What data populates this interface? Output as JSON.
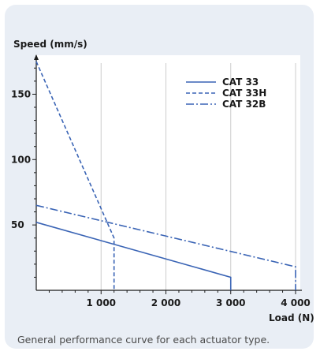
{
  "chart_data": {
    "type": "line",
    "ylabel": "Speed (mm/s)",
    "xlabel": "Load (N)",
    "xlim": [
      0,
      4000
    ],
    "ylim": [
      0,
      175
    ],
    "xticks": [
      1000,
      2000,
      3000,
      4000
    ],
    "xtick_labels": [
      "1 000",
      "2 000",
      "3 000",
      "4 000"
    ],
    "yticks": [
      50,
      100,
      150
    ],
    "ytick_labels": [
      "50",
      "100",
      "150"
    ],
    "grid": true,
    "legend_position": "top-right",
    "series": [
      {
        "name": "CAT 33",
        "dash": "solid",
        "points": [
          [
            0,
            52
          ],
          [
            3000,
            10
          ],
          [
            3000,
            0
          ]
        ]
      },
      {
        "name": "CAT 33H",
        "dash": "dashed",
        "points": [
          [
            0,
            175
          ],
          [
            1200,
            40
          ],
          [
            1200,
            0
          ]
        ]
      },
      {
        "name": "CAT 32B",
        "dash": "dashdot",
        "points": [
          [
            0,
            65
          ],
          [
            4000,
            18
          ],
          [
            4000,
            0
          ]
        ]
      }
    ]
  },
  "caption": "General performance curve for each actuator type.",
  "colors": {
    "line": "#3a64b5",
    "card_background": "#e9eef5",
    "plot_background": "#ffffff",
    "grid": "#cccccc"
  }
}
